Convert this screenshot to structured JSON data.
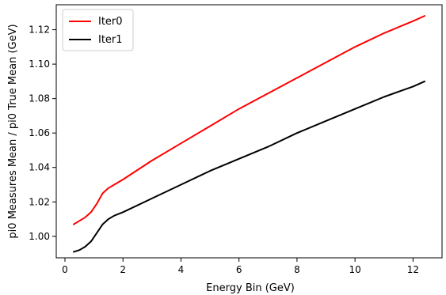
{
  "chart_data": {
    "type": "line",
    "title": "",
    "xlabel": "Energy Bin (GeV)",
    "ylabel": "pi0 Measures Mean / pi0 True Mean (GeV)",
    "xlim": [
      -0.3,
      13.0
    ],
    "ylim": [
      0.9875,
      1.1345
    ],
    "xticks": [
      0,
      2,
      4,
      6,
      8,
      10,
      12
    ],
    "yticks": [
      1.0,
      1.02,
      1.04,
      1.06,
      1.08,
      1.1,
      1.12
    ],
    "xtick_labels": [
      "0",
      "2",
      "4",
      "6",
      "8",
      "10",
      "12"
    ],
    "ytick_labels": [
      "1.00",
      "1.02",
      "1.04",
      "1.06",
      "1.08",
      "1.10",
      "1.12"
    ],
    "grid": false,
    "legend_position": "upper-left",
    "series": [
      {
        "name": "Iter0",
        "color": "#ff0000",
        "x": [
          0.3,
          0.5,
          0.7,
          0.9,
          1.1,
          1.3,
          1.5,
          1.7,
          2.0,
          3.0,
          4.0,
          5.0,
          6.0,
          7.0,
          8.0,
          9.0,
          10.0,
          11.0,
          12.0,
          12.4
        ],
        "y": [
          1.007,
          1.009,
          1.011,
          1.014,
          1.019,
          1.025,
          1.028,
          1.03,
          1.033,
          1.044,
          1.054,
          1.064,
          1.074,
          1.083,
          1.092,
          1.101,
          1.11,
          1.118,
          1.125,
          1.128
        ]
      },
      {
        "name": "Iter1",
        "color": "#000000",
        "x": [
          0.3,
          0.5,
          0.7,
          0.9,
          1.1,
          1.3,
          1.5,
          1.7,
          2.0,
          3.0,
          4.0,
          5.0,
          6.0,
          7.0,
          8.0,
          9.0,
          10.0,
          11.0,
          12.0,
          12.4
        ],
        "y": [
          0.991,
          0.992,
          0.994,
          0.997,
          1.002,
          1.007,
          1.01,
          1.012,
          1.014,
          1.022,
          1.03,
          1.038,
          1.045,
          1.052,
          1.06,
          1.067,
          1.074,
          1.081,
          1.087,
          1.09
        ]
      }
    ]
  }
}
